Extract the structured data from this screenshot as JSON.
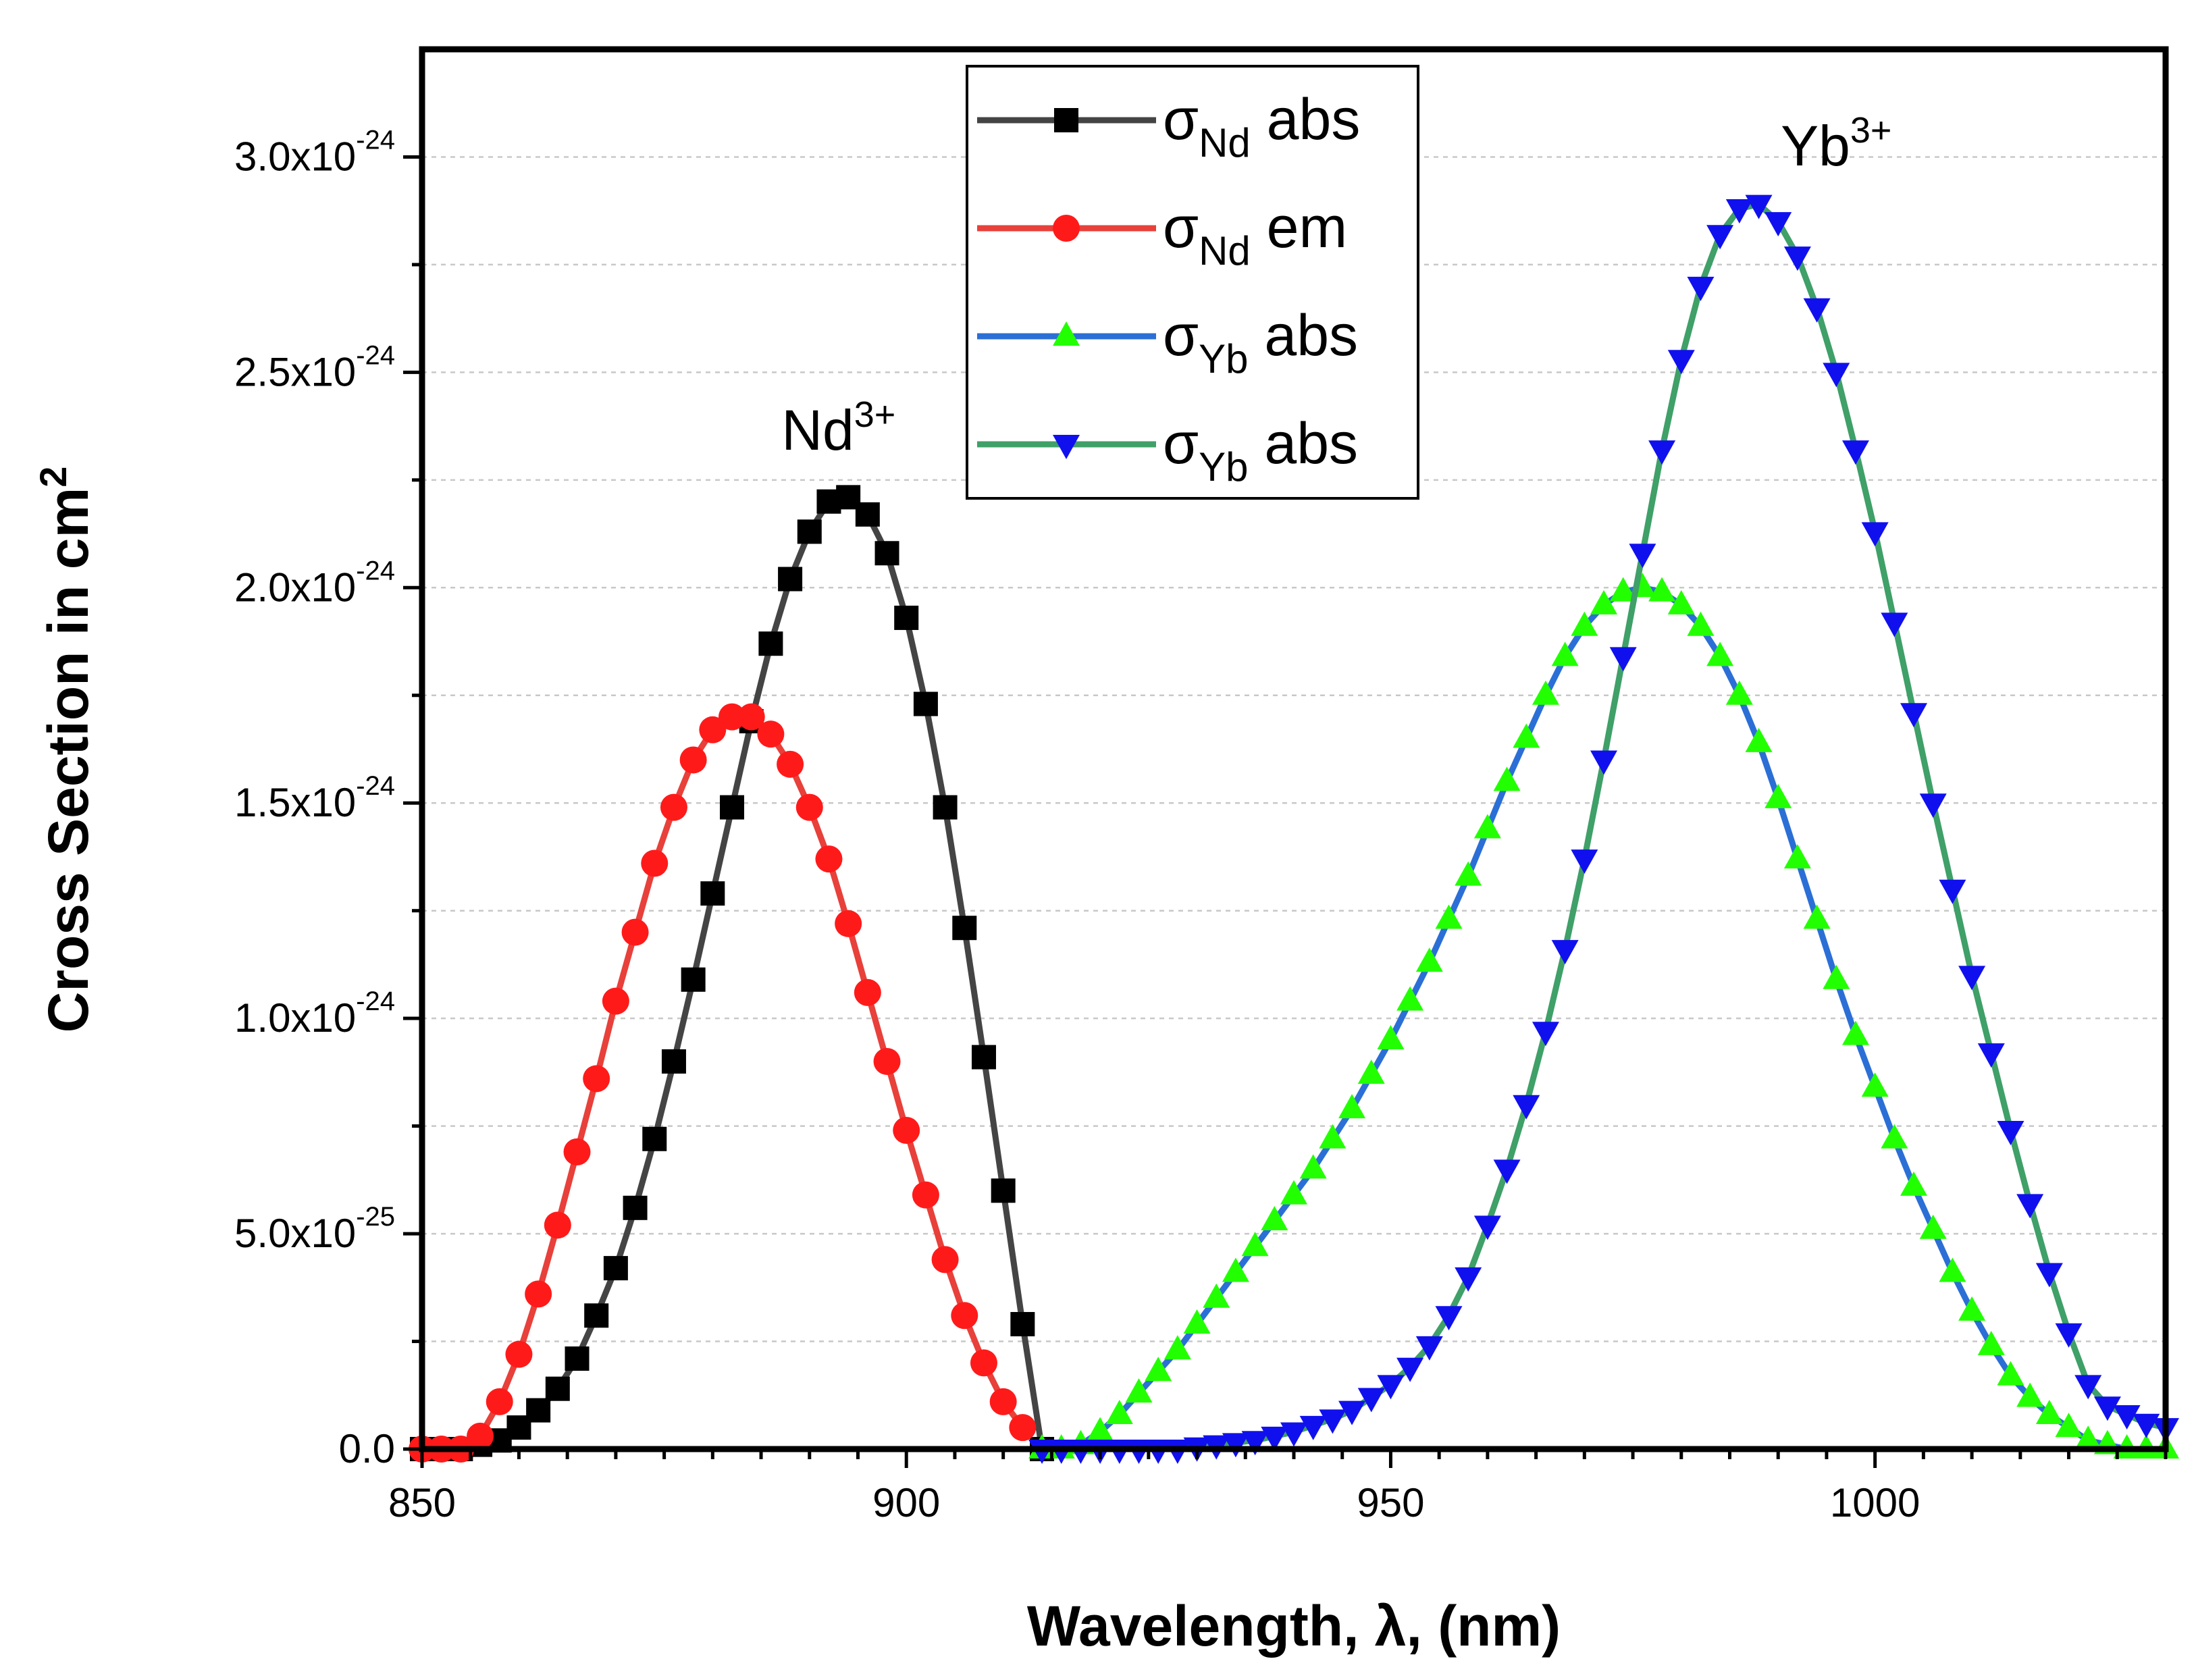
{
  "chart_data": {
    "type": "line",
    "title": "",
    "xlabel": "Wavelength, λ, (nm)",
    "ylabel": "Cross Section in cm",
    "ylabel_sup": "2",
    "xlim": [
      850,
      1030
    ],
    "ylim": [
      0,
      3.25e-24
    ],
    "grid": "horizontal dotted",
    "legend_position": "top-center",
    "x_ticks": [
      {
        "value": 850,
        "label": "850"
      },
      {
        "value": 900,
        "label": "900"
      },
      {
        "value": 950,
        "label": "950"
      },
      {
        "value": 1000,
        "label": "1000"
      }
    ],
    "y_ticks": [
      {
        "value": 0,
        "mant": "0.0",
        "exp": ""
      },
      {
        "value": 5e-25,
        "mant": "5.0x10",
        "exp": "-25"
      },
      {
        "value": 1e-24,
        "mant": "1.0x10",
        "exp": "-24"
      },
      {
        "value": 1.5e-24,
        "mant": "1.5x10",
        "exp": "-24"
      },
      {
        "value": 2e-24,
        "mant": "2.0x10",
        "exp": "-24"
      },
      {
        "value": 2.5e-24,
        "mant": "2.5x10",
        "exp": "-24"
      },
      {
        "value": 3e-24,
        "mant": "3.0x10",
        "exp": "-24"
      }
    ],
    "annotations": [
      {
        "text": "Nd",
        "sup": "3+",
        "x": 893,
        "y": 2.32e-24
      },
      {
        "text": "Yb",
        "sup": "3+",
        "x": 996,
        "y": 2.98e-24
      }
    ],
    "series": [
      {
        "name": "σNd abs",
        "legend_symbol": "σ",
        "legend_sub": "Nd",
        "legend_suffix": "abs",
        "line_color": "#444444",
        "marker_color": "#000000",
        "marker": "square",
        "x": [
          850,
          852,
          854,
          856,
          858,
          860,
          862,
          864,
          866,
          868,
          870,
          872,
          874,
          876,
          878,
          880,
          882,
          884,
          886,
          888,
          890,
          892,
          894,
          896,
          898,
          900,
          902,
          904,
          906,
          908,
          910,
          912,
          914
        ],
        "y": [
          0,
          0,
          0,
          1e-26,
          2e-26,
          5e-26,
          9e-26,
          1.4e-25,
          2.1e-25,
          3.1e-25,
          4.2e-25,
          5.6e-25,
          7.2e-25,
          9e-25,
          1.09e-24,
          1.29e-24,
          1.49e-24,
          1.69e-24,
          1.87e-24,
          2.02e-24,
          2.13e-24,
          2.2e-24,
          2.21e-24,
          2.17e-24,
          2.08e-24,
          1.93e-24,
          1.73e-24,
          1.49e-24,
          1.21e-24,
          9.1e-25,
          6e-25,
          2.9e-25,
          0
        ]
      },
      {
        "name": "σNd em",
        "legend_symbol": "σ",
        "legend_sub": "Nd",
        "legend_suffix": "em",
        "line_color": "#e8403a",
        "marker_color": "#ff1a1a",
        "marker": "circle",
        "x": [
          850,
          852,
          854,
          856,
          858,
          860,
          862,
          864,
          866,
          868,
          870,
          872,
          874,
          876,
          878,
          880,
          882,
          884,
          886,
          888,
          890,
          892,
          894,
          896,
          898,
          900,
          902,
          904,
          906,
          908,
          910,
          912
        ],
        "y": [
          0,
          0,
          0,
          3e-26,
          1.1e-25,
          2.2e-25,
          3.6e-25,
          5.2e-25,
          6.9e-25,
          8.6e-25,
          1.04e-24,
          1.2e-24,
          1.36e-24,
          1.49e-24,
          1.6e-24,
          1.67e-24,
          1.7e-24,
          1.7e-24,
          1.66e-24,
          1.59e-24,
          1.49e-24,
          1.37e-24,
          1.22e-24,
          1.06e-24,
          9e-25,
          7.4e-25,
          5.9e-25,
          4.4e-25,
          3.1e-25,
          2e-25,
          1.1e-25,
          5e-26
        ]
      },
      {
        "name": "σYb abs",
        "legend_symbol": "σ",
        "legend_sub": "Yb",
        "legend_suffix": "abs",
        "line_color": "#2b6fd6",
        "marker_color": "#22ff00",
        "marker": "triangle-up",
        "x": [
          914,
          916,
          918,
          920,
          922,
          924,
          926,
          928,
          930,
          932,
          934,
          936,
          938,
          940,
          942,
          944,
          946,
          948,
          950,
          952,
          954,
          956,
          958,
          960,
          962,
          964,
          966,
          968,
          970,
          972,
          974,
          976,
          978,
          980,
          982,
          984,
          986,
          988,
          990,
          992,
          994,
          996,
          998,
          1000,
          1002,
          1004,
          1006,
          1008,
          1010,
          1012,
          1014,
          1016,
          1018,
          1020,
          1022,
          1024,
          1026,
          1028,
          1030
        ],
        "y": [
          0,
          0,
          1e-26,
          4e-26,
          8e-26,
          1.3e-25,
          1.8e-25,
          2.3e-25,
          2.9e-25,
          3.5e-25,
          4.1e-25,
          4.7e-25,
          5.3e-25,
          5.9e-25,
          6.5e-25,
          7.2e-25,
          7.9e-25,
          8.7e-25,
          9.5e-25,
          1.04e-24,
          1.13e-24,
          1.23e-24,
          1.33e-24,
          1.44e-24,
          1.55e-24,
          1.65e-24,
          1.75e-24,
          1.84e-24,
          1.91e-24,
          1.96e-24,
          1.99e-24,
          2e-24,
          1.99e-24,
          1.96e-24,
          1.91e-24,
          1.84e-24,
          1.75e-24,
          1.64e-24,
          1.51e-24,
          1.37e-24,
          1.23e-24,
          1.09e-24,
          9.6e-25,
          8.4e-25,
          7.2e-25,
          6.1e-25,
          5.1e-25,
          4.1e-25,
          3.2e-25,
          2.4e-25,
          1.7e-25,
          1.2e-25,
          8e-26,
          5e-26,
          2e-26,
          1e-26,
          0,
          0,
          0
        ]
      },
      {
        "name": "σYb abs",
        "legend_symbol": "σ",
        "legend_sub": "Yb",
        "legend_suffix": "abs",
        "line_color": "#3fa068",
        "marker_color": "#1010ee",
        "marker": "triangle-down",
        "x": [
          914,
          916,
          918,
          920,
          922,
          924,
          926,
          928,
          930,
          932,
          934,
          936,
          938,
          940,
          942,
          944,
          946,
          948,
          950,
          952,
          954,
          956,
          958,
          960,
          962,
          964,
          966,
          968,
          970,
          972,
          974,
          976,
          978,
          980,
          982,
          984,
          986,
          988,
          990,
          992,
          994,
          996,
          998,
          1000,
          1002,
          1004,
          1006,
          1008,
          1010,
          1012,
          1014,
          1016,
          1018,
          1020,
          1022,
          1024,
          1026,
          1028,
          1030
        ],
        "y": [
          0,
          0,
          0,
          0,
          0,
          0,
          0,
          0,
          5e-27,
          1e-26,
          1.5e-26,
          2e-26,
          3e-26,
          4e-26,
          5.5e-26,
          7e-26,
          9e-26,
          1.2e-25,
          1.5e-25,
          1.9e-25,
          2.4e-25,
          3.1e-25,
          4e-25,
          5.2e-25,
          6.5e-25,
          8e-25,
          9.7e-25,
          1.16e-24,
          1.37e-24,
          1.6e-24,
          1.84e-24,
          2.08e-24,
          2.32e-24,
          2.53e-24,
          2.7e-24,
          2.82e-24,
          2.88e-24,
          2.89e-24,
          2.85e-24,
          2.77e-24,
          2.65e-24,
          2.5e-24,
          2.32e-24,
          2.13e-24,
          1.92e-24,
          1.71e-24,
          1.5e-24,
          1.3e-24,
          1.1e-24,
          9.2e-25,
          7.4e-25,
          5.7e-25,
          4.1e-25,
          2.7e-25,
          1.5e-25,
          1e-25,
          8e-26,
          6e-26,
          5e-26
        ]
      }
    ]
  }
}
